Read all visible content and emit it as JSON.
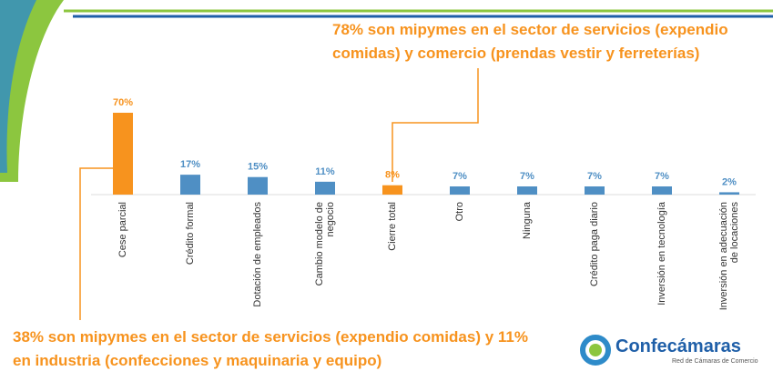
{
  "chart_data": {
    "type": "bar",
    "categories": [
      "Cese parcial",
      "Crédito formal",
      "Dotación de empleados",
      "Cambio modelo de negocio",
      "Cierre total",
      "Otro",
      "Ninguna",
      "Crédito paga diario",
      "Inversión en tecnología",
      "Inversión en adecuación de locaciones"
    ],
    "values": [
      70,
      17,
      15,
      11,
      8,
      7,
      7,
      7,
      7,
      2
    ],
    "value_labels": [
      "70%",
      "17%",
      "15%",
      "11%",
      "8%",
      "7%",
      "7%",
      "7%",
      "7%",
      "2%"
    ],
    "colors": [
      "#f7931e",
      "#4f8fc4",
      "#4f8fc4",
      "#4f8fc4",
      "#f7931e",
      "#4f8fc4",
      "#4f8fc4",
      "#4f8fc4",
      "#4f8fc4",
      "#4f8fc4"
    ],
    "annotations": [
      "78% son mipymes en el sector de servicios (expendio comidas) y comercio (prendas vestir y ferreterías)",
      "38% son mipymes en el sector de servicios (expendio comidas) y 11% en industria (confecciones y maquinaria y equipo)"
    ]
  },
  "logo": {
    "name": "Confecámaras",
    "tagline": "Red de Cámaras de Comercio"
  }
}
